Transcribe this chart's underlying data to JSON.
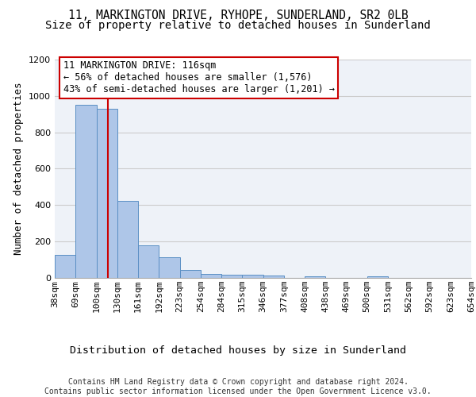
{
  "title1": "11, MARKINGTON DRIVE, RYHOPE, SUNDERLAND, SR2 0LB",
  "title2": "Size of property relative to detached houses in Sunderland",
  "xlabel": "Distribution of detached houses by size in Sunderland",
  "ylabel": "Number of detached properties",
  "bar_values": [
    125,
    950,
    930,
    425,
    180,
    115,
    42,
    20,
    18,
    18,
    15,
    2,
    8,
    2,
    2,
    8,
    2,
    2
  ],
  "bin_labels": [
    "38sqm",
    "69sqm",
    "100sqm",
    "130sqm",
    "161sqm",
    "192sqm",
    "223sqm",
    "254sqm",
    "284sqm",
    "315sqm",
    "346sqm",
    "377sqm",
    "408sqm",
    "438sqm",
    "469sqm",
    "500sqm",
    "531sqm",
    "562sqm",
    "592sqm",
    "623sqm",
    "654sqm"
  ],
  "bar_color": "#aec6e8",
  "bar_edge_color": "#5a8fc4",
  "vline_color": "#cc0000",
  "vline_x_index": 2.5,
  "annotation_text": "11 MARKINGTON DRIVE: 116sqm\n← 56% of detached houses are smaller (1,576)\n43% of semi-detached houses are larger (1,201) →",
  "annotation_box_color": "#ffffff",
  "annotation_box_edge": "#cc0000",
  "ylim": [
    0,
    1200
  ],
  "yticks": [
    0,
    200,
    400,
    600,
    800,
    1000,
    1200
  ],
  "grid_color": "#cccccc",
  "background_color": "#eef2f8",
  "footer": "Contains HM Land Registry data © Crown copyright and database right 2024.\nContains public sector information licensed under the Open Government Licence v3.0.",
  "title1_fontsize": 10.5,
  "title2_fontsize": 10,
  "xlabel_fontsize": 9.5,
  "ylabel_fontsize": 9,
  "tick_fontsize": 8,
  "annotation_fontsize": 8.5,
  "footer_fontsize": 7
}
